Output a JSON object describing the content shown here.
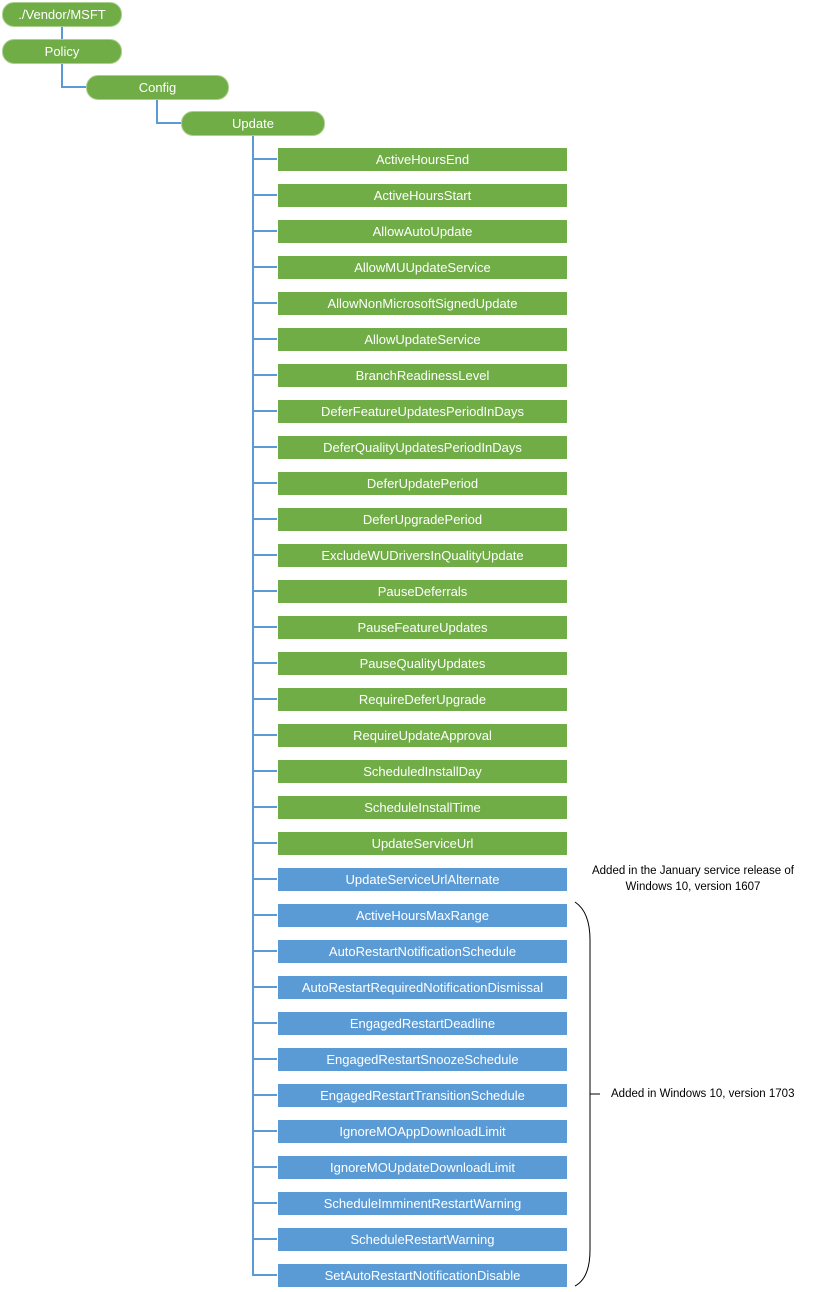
{
  "colors": {
    "green": "#70ad47",
    "blue": "#5b9bd5",
    "connector": "#5b9bd5"
  },
  "path": [
    "./Vendor/MSFT",
    "Policy",
    "Config",
    "Update"
  ],
  "children": [
    {
      "label": "ActiveHoursEnd",
      "group": "green"
    },
    {
      "label": "ActiveHoursStart",
      "group": "green"
    },
    {
      "label": "AllowAutoUpdate",
      "group": "green"
    },
    {
      "label": "AllowMUUpdateService",
      "group": "green"
    },
    {
      "label": "AllowNonMicrosoftSignedUpdate",
      "group": "green"
    },
    {
      "label": "AllowUpdateService",
      "group": "green"
    },
    {
      "label": "BranchReadinessLevel",
      "group": "green"
    },
    {
      "label": "DeferFeatureUpdatesPeriodInDays",
      "group": "green"
    },
    {
      "label": "DeferQualityUpdatesPeriodInDays",
      "group": "green"
    },
    {
      "label": "DeferUpdatePeriod",
      "group": "green"
    },
    {
      "label": "DeferUpgradePeriod",
      "group": "green"
    },
    {
      "label": "ExcludeWUDriversInQualityUpdate",
      "group": "green"
    },
    {
      "label": "PauseDeferrals",
      "group": "green"
    },
    {
      "label": "PauseFeatureUpdates",
      "group": "green"
    },
    {
      "label": "PauseQualityUpdates",
      "group": "green"
    },
    {
      "label": "RequireDeferUpgrade",
      "group": "green"
    },
    {
      "label": "RequireUpdateApproval",
      "group": "green"
    },
    {
      "label": "ScheduledInstallDay",
      "group": "green"
    },
    {
      "label": "ScheduleInstallTime",
      "group": "green"
    },
    {
      "label": "UpdateServiceUrl",
      "group": "green"
    },
    {
      "label": "UpdateServiceUrlAlternate",
      "group": "blue"
    },
    {
      "label": "ActiveHoursMaxRange",
      "group": "blue"
    },
    {
      "label": "AutoRestartNotificationSchedule",
      "group": "blue"
    },
    {
      "label": "AutoRestartRequiredNotificationDismissal",
      "group": "blue"
    },
    {
      "label": "EngagedRestartDeadline",
      "group": "blue"
    },
    {
      "label": "EngagedRestartSnoozeSchedule",
      "group": "blue"
    },
    {
      "label": "EngagedRestartTransitionSchedule",
      "group": "blue"
    },
    {
      "label": "IgnoreMOAppDownloadLimit",
      "group": "blue"
    },
    {
      "label": "IgnoreMOUpdateDownloadLimit",
      "group": "blue"
    },
    {
      "label": "ScheduleImminentRestartWarning",
      "group": "blue"
    },
    {
      "label": "ScheduleRestartWarning",
      "group": "blue"
    },
    {
      "label": "SetAutoRestartNotificationDisable",
      "group": "blue"
    }
  ],
  "notes": {
    "jan_1607_line1": "Added in the January service release of",
    "jan_1607_line2": "Windows 10, version 1607",
    "v1703": "Added in Windows 10, version 1703"
  }
}
